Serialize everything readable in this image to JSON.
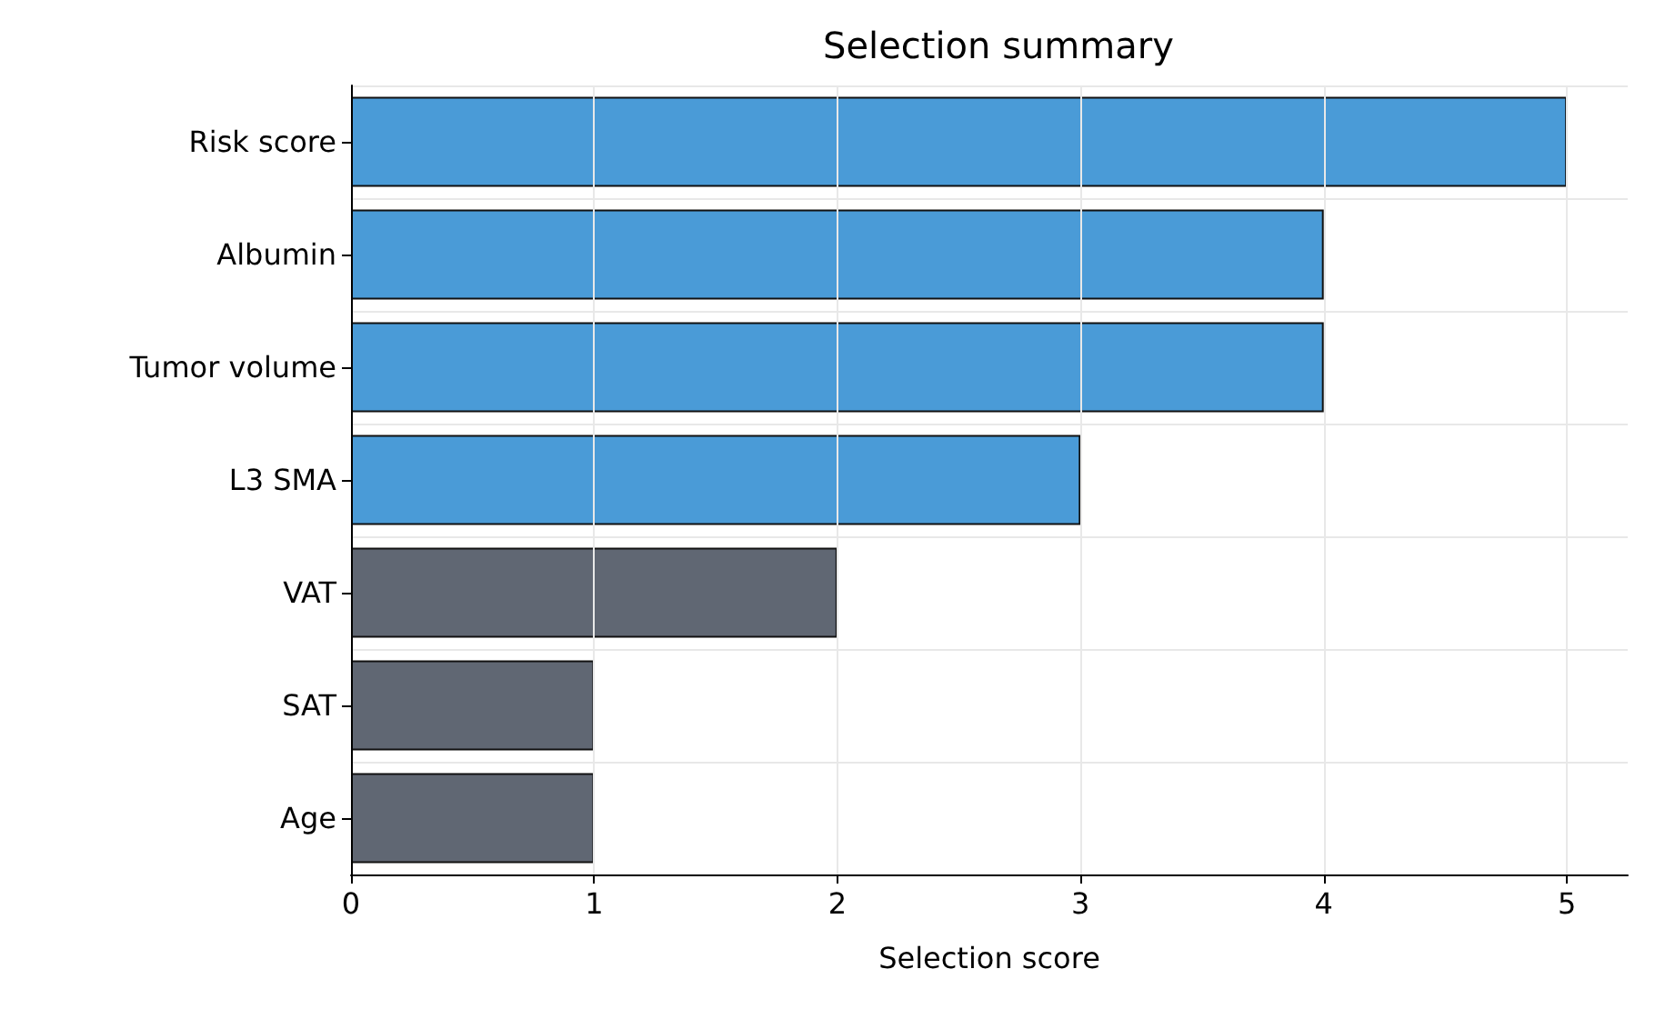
{
  "chart_data": {
    "type": "bar",
    "orientation": "horizontal",
    "title": "Selection summary",
    "xlabel": "Selection score",
    "categories": [
      "Risk score",
      "Albumin",
      "Tumor volume",
      "L3 SMA",
      "VAT",
      "SAT",
      "Age"
    ],
    "values": [
      5,
      4,
      4,
      3,
      2,
      1,
      1
    ],
    "colors": [
      "#4a9bd7",
      "#4a9bd7",
      "#4a9bd7",
      "#4a9bd7",
      "#606773",
      "#606773",
      "#606773"
    ],
    "xlim": [
      0,
      5.25
    ],
    "xticks": [
      0,
      1,
      2,
      3,
      4,
      5
    ],
    "grid": true
  }
}
